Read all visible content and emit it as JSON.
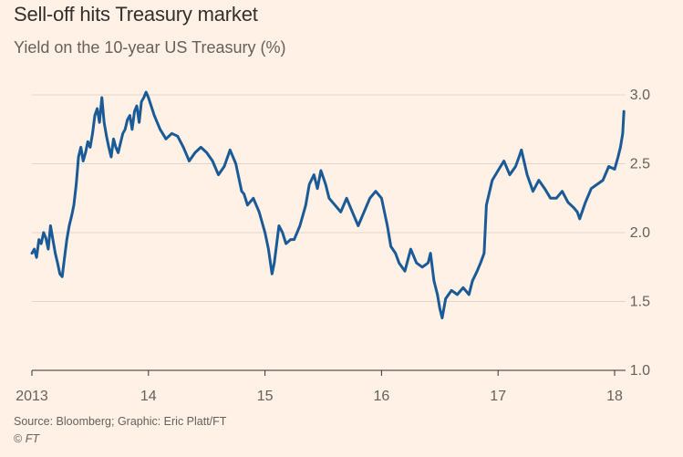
{
  "header": {
    "title": "Sell-off hits Treasury market",
    "subtitle": "Yield on the 10-year US Treasury (%)"
  },
  "footer": {
    "source": "Source: Bloomberg; Graphic: Eric Platt/FT",
    "credit_symbol": "©",
    "credit_text": "FT"
  },
  "chart_data": {
    "type": "line",
    "title": "Sell-off hits Treasury market",
    "subtitle": "Yield on the 10-year US Treasury (%)",
    "xlabel": "",
    "ylabel": "",
    "xlim": [
      2013.0,
      2018.08
    ],
    "ylim": [
      1.0,
      3.0
    ],
    "y_axis_side": "right",
    "grid": true,
    "x_ticks": [
      {
        "value": 2013,
        "label": "2013"
      },
      {
        "value": 2014,
        "label": "14"
      },
      {
        "value": 2015,
        "label": "15"
      },
      {
        "value": 2016,
        "label": "16"
      },
      {
        "value": 2017,
        "label": "17"
      },
      {
        "value": 2018,
        "label": "18"
      }
    ],
    "y_ticks": [
      {
        "value": 1.0,
        "label": "1.0"
      },
      {
        "value": 1.5,
        "label": "1.5"
      },
      {
        "value": 2.0,
        "label": "2.0"
      },
      {
        "value": 2.5,
        "label": "2.5"
      },
      {
        "value": 3.0,
        "label": "3.0"
      }
    ],
    "series": [
      {
        "name": "US 10-year Treasury yield",
        "color": "#1a5a96",
        "x": [
          2013.0,
          2013.02,
          2013.04,
          2013.06,
          2013.08,
          2013.1,
          2013.12,
          2013.14,
          2013.16,
          2013.18,
          2013.2,
          2013.22,
          2013.24,
          2013.26,
          2013.28,
          2013.3,
          2013.32,
          2013.34,
          2013.36,
          2013.38,
          2013.4,
          2013.42,
          2013.44,
          2013.46,
          2013.48,
          2013.5,
          2013.52,
          2013.54,
          2013.56,
          2013.58,
          2013.6,
          2013.62,
          2013.64,
          2013.66,
          2013.68,
          2013.7,
          2013.72,
          2013.74,
          2013.76,
          2013.78,
          2013.8,
          2013.82,
          2013.84,
          2013.86,
          2013.88,
          2013.9,
          2013.92,
          2013.94,
          2013.96,
          2013.98,
          2014.0,
          2014.05,
          2014.1,
          2014.15,
          2014.2,
          2014.25,
          2014.3,
          2014.35,
          2014.4,
          2014.45,
          2014.5,
          2014.55,
          2014.6,
          2014.65,
          2014.7,
          2014.75,
          2014.8,
          2014.82,
          2014.85,
          2014.9,
          2014.95,
          2015.0,
          2015.03,
          2015.06,
          2015.08,
          2015.12,
          2015.15,
          2015.18,
          2015.22,
          2015.25,
          2015.3,
          2015.35,
          2015.38,
          2015.42,
          2015.45,
          2015.48,
          2015.52,
          2015.55,
          2015.6,
          2015.65,
          2015.7,
          2015.75,
          2015.8,
          2015.85,
          2015.9,
          2015.95,
          2016.0,
          2016.05,
          2016.08,
          2016.12,
          2016.15,
          2016.2,
          2016.25,
          2016.3,
          2016.35,
          2016.4,
          2016.42,
          2016.45,
          2016.48,
          2016.5,
          2016.52,
          2016.55,
          2016.6,
          2016.65,
          2016.7,
          2016.75,
          2016.78,
          2016.82,
          2016.85,
          2016.88,
          2016.9,
          2016.95,
          2017.0,
          2017.05,
          2017.1,
          2017.15,
          2017.18,
          2017.2,
          2017.25,
          2017.3,
          2017.35,
          2017.4,
          2017.45,
          2017.5,
          2017.55,
          2017.6,
          2017.65,
          2017.68,
          2017.7,
          2017.75,
          2017.8,
          2017.85,
          2017.9,
          2017.95,
          2018.0,
          2018.03,
          2018.05,
          2018.07,
          2018.08
        ],
        "values": [
          1.85,
          1.88,
          1.82,
          1.95,
          1.92,
          2.0,
          1.96,
          1.88,
          2.05,
          1.95,
          1.85,
          1.78,
          1.7,
          1.68,
          1.82,
          1.95,
          2.05,
          2.12,
          2.2,
          2.35,
          2.55,
          2.62,
          2.52,
          2.58,
          2.66,
          2.62,
          2.72,
          2.85,
          2.9,
          2.8,
          2.98,
          2.8,
          2.7,
          2.62,
          2.55,
          2.68,
          2.62,
          2.58,
          2.65,
          2.72,
          2.75,
          2.82,
          2.85,
          2.75,
          2.88,
          2.92,
          2.8,
          2.95,
          2.98,
          3.02,
          2.98,
          2.85,
          2.75,
          2.68,
          2.72,
          2.7,
          2.62,
          2.52,
          2.58,
          2.62,
          2.58,
          2.52,
          2.42,
          2.48,
          2.6,
          2.5,
          2.3,
          2.28,
          2.2,
          2.25,
          2.15,
          2.0,
          1.88,
          1.7,
          1.78,
          2.05,
          2.0,
          1.92,
          1.95,
          1.95,
          2.05,
          2.2,
          2.35,
          2.42,
          2.32,
          2.45,
          2.35,
          2.25,
          2.2,
          2.15,
          2.25,
          2.15,
          2.05,
          2.15,
          2.25,
          2.3,
          2.25,
          2.05,
          1.9,
          1.85,
          1.78,
          1.72,
          1.88,
          1.78,
          1.75,
          1.78,
          1.85,
          1.65,
          1.55,
          1.45,
          1.38,
          1.52,
          1.58,
          1.55,
          1.6,
          1.55,
          1.65,
          1.72,
          1.78,
          1.85,
          2.2,
          2.38,
          2.45,
          2.52,
          2.42,
          2.48,
          2.55,
          2.6,
          2.42,
          2.3,
          2.38,
          2.32,
          2.25,
          2.25,
          2.3,
          2.22,
          2.18,
          2.15,
          2.1,
          2.22,
          2.32,
          2.35,
          2.38,
          2.48,
          2.46,
          2.55,
          2.62,
          2.72,
          2.88
        ]
      }
    ]
  }
}
